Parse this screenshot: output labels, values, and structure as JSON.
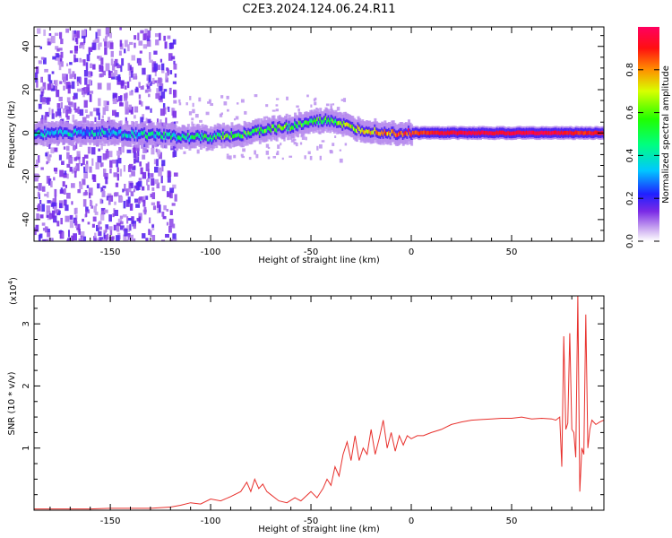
{
  "figure": {
    "title": "C2E3.2024.124.06.24.R11"
  },
  "colorbar": {
    "label": "Normalized spectral amplitude",
    "ticks": [
      "0.0",
      "0.2",
      "0.4",
      "0.6",
      "0.8"
    ],
    "tick_values": [
      0.0,
      0.2,
      0.4,
      0.6,
      0.8
    ],
    "range": [
      0,
      1
    ]
  },
  "chart_data": [
    {
      "type": "heatmap",
      "title": "",
      "xlabel": "Height of straight line (km)",
      "ylabel": "Frequency (Hz)",
      "xlim": [
        -188,
        96
      ],
      "ylim": [
        -50,
        49
      ],
      "xticks": [
        -150,
        -100,
        -50,
        0,
        50
      ],
      "xtick_labels": [
        "-150",
        "-100",
        "-50",
        "0",
        "50"
      ],
      "yticks": [
        -40,
        -20,
        0,
        20,
        40
      ],
      "ytick_labels": [
        "-40",
        "-20",
        "0",
        "20",
        "40"
      ],
      "ridge": {
        "x": [
          -188,
          -170,
          -150,
          -130,
          -110,
          -100,
          -90,
          -80,
          -70,
          -60,
          -50,
          -40,
          -30,
          -20,
          -10,
          0,
          10,
          30,
          50,
          70,
          80,
          90,
          96
        ],
        "center_hz": [
          0,
          0,
          0,
          -1,
          -2,
          -2,
          -1,
          0,
          2,
          3,
          5,
          6,
          2,
          1,
          0,
          0,
          0,
          0,
          0,
          0,
          0,
          0,
          0
        ],
        "amplitude": [
          0.3,
          0.3,
          0.3,
          0.35,
          0.4,
          0.45,
          0.5,
          0.5,
          0.55,
          0.5,
          0.5,
          0.5,
          0.6,
          0.7,
          0.8,
          0.85,
          0.9,
          0.95,
          0.95,
          0.95,
          0.9,
          0.9,
          0.9
        ]
      },
      "noise_region_x": [
        -188,
        -118
      ],
      "grid": false
    },
    {
      "type": "line",
      "title": "",
      "xlabel": "Height of straight line (km)",
      "ylabel": "SNR (10 * v/v)",
      "y_multiplier_label": "(x10",
      "y_multiplier_exp": "4",
      "y_multiplier_close": ")",
      "xlim": [
        -188,
        96
      ],
      "ylim": [
        0,
        3.45
      ],
      "xticks": [
        -150,
        -100,
        -50,
        0,
        50
      ],
      "xtick_labels": [
        "-150",
        "-100",
        "-50",
        "0",
        "50"
      ],
      "yticks": [
        1,
        2,
        3
      ],
      "ytick_labels": [
        "1",
        "2",
        "3"
      ],
      "series": [
        {
          "color": "#e8302c",
          "x": [
            -188,
            -180,
            -170,
            -160,
            -150,
            -140,
            -130,
            -120,
            -115,
            -110,
            -105,
            -100,
            -95,
            -90,
            -85,
            -82,
            -80,
            -78,
            -76,
            -74,
            -72,
            -70,
            -66,
            -62,
            -58,
            -55,
            -50,
            -47,
            -44,
            -42,
            -40,
            -38,
            -36,
            -34,
            -32,
            -30,
            -28,
            -26,
            -24,
            -22,
            -20,
            -18,
            -16,
            -14,
            -12,
            -10,
            -8,
            -6,
            -4,
            -2,
            0,
            3,
            6,
            10,
            15,
            20,
            25,
            30,
            35,
            40,
            45,
            50,
            55,
            60,
            65,
            70,
            72,
            74,
            75,
            76,
            77,
            78,
            79,
            80,
            81,
            82,
            83,
            84,
            85,
            86,
            87,
            88,
            89,
            90,
            92,
            94,
            96
          ],
          "y": [
            0.02,
            0.02,
            0.02,
            0.02,
            0.03,
            0.03,
            0.03,
            0.05,
            0.08,
            0.12,
            0.1,
            0.18,
            0.15,
            0.22,
            0.3,
            0.45,
            0.3,
            0.5,
            0.35,
            0.42,
            0.3,
            0.25,
            0.15,
            0.12,
            0.2,
            0.15,
            0.3,
            0.2,
            0.35,
            0.5,
            0.4,
            0.7,
            0.55,
            0.9,
            1.1,
            0.8,
            1.2,
            0.8,
            1.0,
            0.9,
            1.3,
            0.9,
            1.15,
            1.45,
            1.0,
            1.25,
            0.95,
            1.2,
            1.05,
            1.2,
            1.15,
            1.2,
            1.2,
            1.25,
            1.3,
            1.38,
            1.42,
            1.45,
            1.46,
            1.47,
            1.48,
            1.48,
            1.5,
            1.47,
            1.48,
            1.47,
            1.45,
            1.5,
            0.7,
            2.8,
            1.3,
            1.4,
            2.85,
            1.3,
            1.25,
            0.85,
            3.45,
            0.3,
            1.0,
            0.9,
            3.15,
            1.0,
            1.3,
            1.45,
            1.38,
            1.42,
            1.45
          ]
        }
      ],
      "grid": false
    }
  ]
}
